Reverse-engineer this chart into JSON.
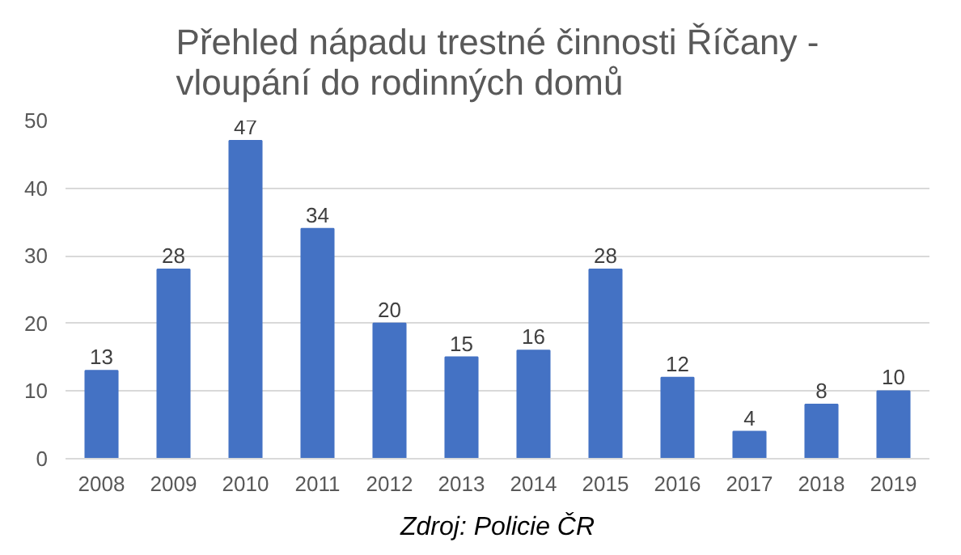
{
  "chart_data": {
    "type": "bar",
    "title": "Přehled nápadu trestné činnosti Říčany -\nvloupání do rodinných domů",
    "categories": [
      "2008",
      "2009",
      "2010",
      "2011",
      "2012",
      "2013",
      "2014",
      "2015",
      "2016",
      "2017",
      "2018",
      "2019"
    ],
    "values": [
      13,
      28,
      47,
      34,
      20,
      15,
      16,
      28,
      12,
      4,
      8,
      10
    ],
    "color": "#4472c4",
    "ylim": [
      0,
      50
    ],
    "yticks": [
      0,
      10,
      20,
      30,
      40,
      50
    ],
    "grid": "y",
    "data_labels": true,
    "annotations": [
      "Zdroj: Policie ČR"
    ]
  }
}
